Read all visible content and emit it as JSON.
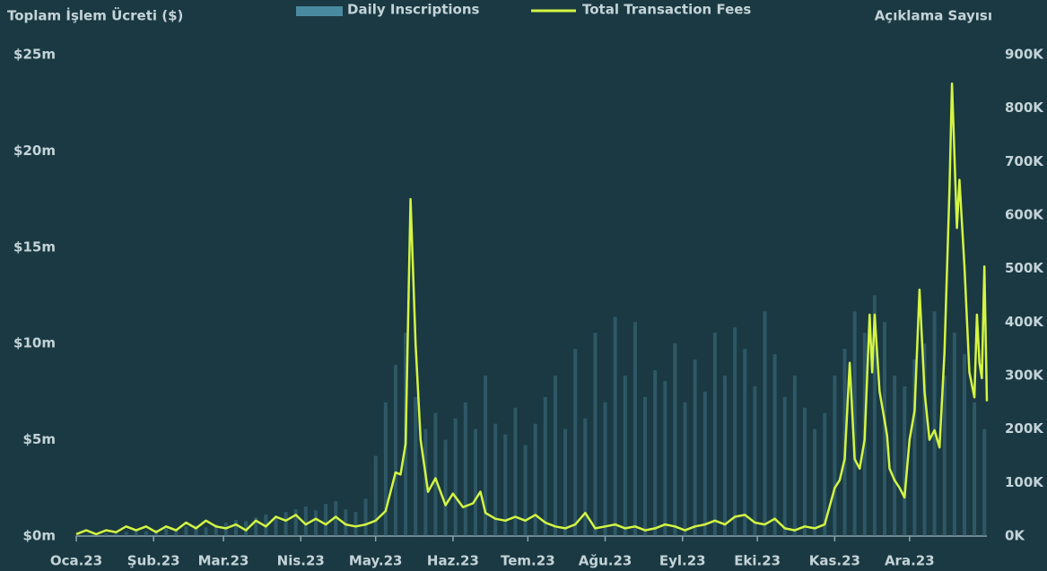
{
  "chart_data": {
    "type": "bar-line",
    "y_label": "Toplam İşlem Ücreti ($)",
    "y2_label": "Açıklama Sayısı",
    "xlim": [
      0,
      365
    ],
    "xticks": [
      {
        "value": 0,
        "label": "Oca.23"
      },
      {
        "value": 31,
        "label": "Şub.23"
      },
      {
        "value": 59,
        "label": "Mar.23"
      },
      {
        "value": 90,
        "label": "Nis.23"
      },
      {
        "value": 120,
        "label": "May.23"
      },
      {
        "value": 151,
        "label": "Haz.23"
      },
      {
        "value": 181,
        "label": "Tem.23"
      },
      {
        "value": 212,
        "label": "Ağu.23"
      },
      {
        "value": 243,
        "label": "Eyl.23"
      },
      {
        "value": 273,
        "label": "Eki.23"
      },
      {
        "value": 304,
        "label": "Kas.23"
      },
      {
        "value": 334,
        "label": "Ara.23"
      }
    ],
    "ylim": [
      0,
      25000000
    ],
    "yticks": [
      {
        "value": 0,
        "label": "$0m"
      },
      {
        "value": 5000000,
        "label": "$5m"
      },
      {
        "value": 10000000,
        "label": "$10m"
      },
      {
        "value": 15000000,
        "label": "$15m"
      },
      {
        "value": 20000000,
        "label": "$20m"
      },
      {
        "value": 25000000,
        "label": "$25m"
      }
    ],
    "y2lim": [
      0,
      900000
    ],
    "y2ticks": [
      {
        "value": 0,
        "label": "0K"
      },
      {
        "value": 100000,
        "label": "100K"
      },
      {
        "value": 200000,
        "label": "200K"
      },
      {
        "value": 300000,
        "label": "300K"
      },
      {
        "value": 400000,
        "label": "400K"
      },
      {
        "value": 500000,
        "label": "500K"
      },
      {
        "value": 600000,
        "label": "600K"
      },
      {
        "value": 700000,
        "label": "700K"
      },
      {
        "value": 800000,
        "label": "800K"
      },
      {
        "value": 900000,
        "label": "900K"
      }
    ],
    "series": [
      {
        "name": "Daily Inscriptions",
        "type": "bar",
        "axis": "y2",
        "color": "#3f7385",
        "x": [
          0,
          4,
          8,
          12,
          16,
          20,
          24,
          28,
          32,
          36,
          40,
          44,
          48,
          52,
          56,
          60,
          64,
          68,
          72,
          76,
          80,
          84,
          88,
          92,
          96,
          100,
          104,
          108,
          112,
          116,
          120,
          124,
          128,
          132,
          136,
          140,
          144,
          148,
          152,
          156,
          160,
          164,
          168,
          172,
          176,
          180,
          184,
          188,
          192,
          196,
          200,
          204,
          208,
          212,
          216,
          220,
          224,
          228,
          232,
          236,
          240,
          244,
          248,
          252,
          256,
          260,
          264,
          268,
          272,
          276,
          280,
          284,
          288,
          292,
          296,
          300,
          304,
          308,
          312,
          316,
          320,
          324,
          328,
          332,
          336,
          340,
          344,
          348,
          352,
          356,
          360,
          364
        ],
        "values": [
          2000,
          3000,
          4000,
          5000,
          6000,
          8000,
          10000,
          9000,
          12000,
          15000,
          14000,
          18000,
          20000,
          16000,
          22000,
          25000,
          30000,
          28000,
          35000,
          40000,
          38000,
          45000,
          50000,
          55000,
          48000,
          60000,
          65000,
          50000,
          45000,
          70000,
          150000,
          250000,
          320000,
          380000,
          260000,
          200000,
          230000,
          180000,
          220000,
          250000,
          200000,
          300000,
          210000,
          190000,
          240000,
          170000,
          210000,
          260000,
          300000,
          200000,
          350000,
          220000,
          380000,
          250000,
          410000,
          300000,
          400000,
          260000,
          310000,
          290000,
          360000,
          250000,
          330000,
          270000,
          380000,
          300000,
          390000,
          350000,
          280000,
          420000,
          340000,
          260000,
          300000,
          240000,
          200000,
          230000,
          300000,
          350000,
          420000,
          380000,
          450000,
          400000,
          300000,
          280000,
          330000,
          360000,
          420000,
          300000,
          380000,
          340000,
          250000,
          200000
        ]
      },
      {
        "name": "Total Transaction Fees",
        "type": "line",
        "axis": "y",
        "color": "#d4f542",
        "x": [
          0,
          4,
          8,
          12,
          16,
          20,
          24,
          28,
          32,
          36,
          40,
          44,
          48,
          52,
          56,
          60,
          64,
          68,
          72,
          76,
          80,
          84,
          88,
          92,
          96,
          100,
          104,
          108,
          112,
          116,
          120,
          124,
          128,
          130,
          132,
          134,
          136,
          138,
          141,
          144,
          148,
          151,
          155,
          159,
          162,
          164,
          168,
          172,
          176,
          180,
          184,
          188,
          192,
          196,
          200,
          204,
          208,
          212,
          216,
          220,
          224,
          228,
          232,
          236,
          240,
          244,
          248,
          252,
          256,
          260,
          264,
          268,
          272,
          276,
          280,
          284,
          288,
          292,
          296,
          300,
          304,
          306,
          308,
          310,
          312,
          314,
          316,
          318,
          319,
          320,
          322,
          324,
          325,
          326,
          328,
          330,
          332,
          334,
          336,
          338,
          340,
          342,
          344,
          346,
          348,
          350,
          351,
          353,
          354,
          356,
          358,
          360,
          361,
          362,
          363,
          364,
          365
        ],
        "values": [
          100000,
          300000,
          100000,
          300000,
          200000,
          500000,
          300000,
          500000,
          200000,
          500000,
          300000,
          700000,
          400000,
          800000,
          500000,
          400000,
          600000,
          300000,
          800000,
          500000,
          1000000,
          800000,
          1100000,
          600000,
          900000,
          600000,
          1000000,
          600000,
          500000,
          600000,
          800000,
          1300000,
          3300000,
          3200000,
          4800000,
          17500000,
          10000000,
          5000000,
          2300000,
          3000000,
          1600000,
          2200000,
          1500000,
          1700000,
          2300000,
          1200000,
          900000,
          800000,
          1000000,
          800000,
          1100000,
          700000,
          500000,
          400000,
          600000,
          1200000,
          400000,
          500000,
          600000,
          400000,
          500000,
          300000,
          400000,
          600000,
          500000,
          300000,
          500000,
          600000,
          800000,
          600000,
          1000000,
          1100000,
          700000,
          600000,
          900000,
          400000,
          300000,
          500000,
          400000,
          600000,
          2500000,
          2900000,
          4000000,
          9000000,
          4000000,
          3500000,
          5000000,
          11500000,
          8500000,
          11500000,
          7500000,
          6000000,
          5200000,
          3500000,
          2900000,
          2500000,
          2000000,
          5000000,
          6500000,
          12800000,
          7500000,
          5000000,
          5500000,
          4600000,
          9500000,
          18000000,
          23500000,
          16000000,
          18500000,
          14000000,
          8500000,
          7200000,
          11500000,
          9000000,
          8200000,
          14000000,
          7000000
        ]
      }
    ]
  }
}
